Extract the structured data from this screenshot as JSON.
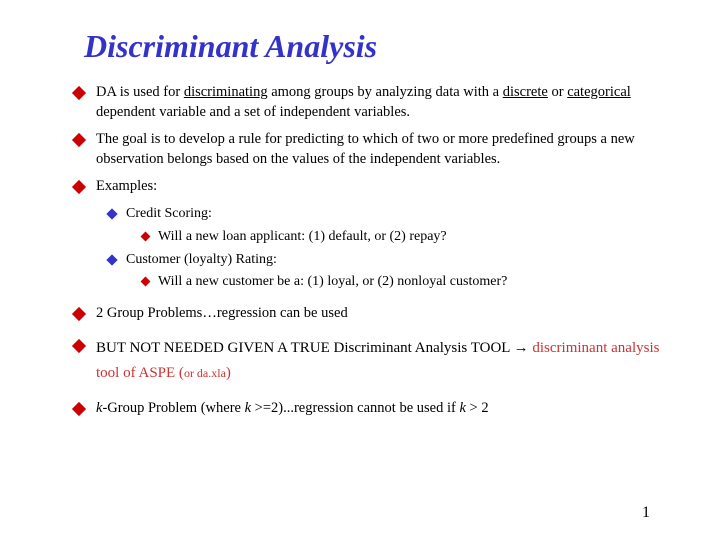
{
  "colors": {
    "title": "#3333cc",
    "bullet_red": "#cc0000",
    "bullet_blue": "#3333cc",
    "text_black": "#000000",
    "highlight_red": "#cc3333"
  },
  "title": "Discriminant Analysis",
  "page_number": "1",
  "bullets": [
    {
      "level": 1,
      "segments": [
        {
          "t": "DA is used for "
        },
        {
          "t": "discriminating",
          "u": true,
          "comic": true
        },
        {
          "t": " among groups by analyzing data with a "
        },
        {
          "t": "discrete",
          "u": true,
          "comic": true
        },
        {
          "t": " or "
        },
        {
          "t": "categorical",
          "u": true,
          "comic": true
        },
        {
          "t": " dependent variable and a set of independent variables."
        }
      ]
    },
    {
      "level": 1,
      "segments": [
        {
          "t": "The goal is to develop a rule for predicting to which of two or more predefined groups a new observation belongs based on the values of the independent variables."
        }
      ]
    },
    {
      "level": 1,
      "segments": [
        {
          "t": "Examples:"
        }
      ]
    },
    {
      "level": 2,
      "segments": [
        {
          "t": "Credit Scoring:"
        }
      ]
    },
    {
      "level": 3,
      "segments": [
        {
          "t": "Will a new loan applicant: (1) default, or (2) repay?"
        }
      ]
    },
    {
      "level": 2,
      "segments": [
        {
          "t": "Customer (loyalty) Rating:"
        }
      ]
    },
    {
      "level": 3,
      "segments": [
        {
          "t": "Will a new customer be a: (1) loyal, or (2) nonloyal customer?"
        }
      ]
    },
    {
      "level": 1,
      "spaced": true,
      "segments": [
        {
          "t": "2 Group Problems…"
        },
        {
          "t": "regression can be used",
          "comic": true
        }
      ]
    },
    {
      "level": 1,
      "spaced": true,
      "comic_all": true,
      "segments": [
        {
          "t": "BUT NOT NEEDED GIVEN A TRUE D",
          "comic": true
        },
        {
          "t": "iscriminant Analysis TOOL ",
          "comic": true
        },
        {
          "t": "→ ",
          "comic": true
        },
        {
          "t": "discriminant analysis tool of ASPE (",
          "comic": true,
          "color": "#cc3333"
        },
        {
          "t": "or da.xla",
          "comic": true,
          "color": "#cc3333",
          "small": true
        },
        {
          "t": ")",
          "comic": true,
          "color": "#cc3333"
        }
      ]
    },
    {
      "level": 1,
      "spaced": true,
      "segments": [
        {
          "t": "k",
          "italic": true
        },
        {
          "t": "-Group Problem (where "
        },
        {
          "t": "k",
          "italic": true
        },
        {
          "t": " >=2)..."
        },
        {
          "t": "regression cannot be used if ",
          "comic": true
        },
        {
          "t": "k",
          "comic": true,
          "italic": true
        },
        {
          "t": " > 2",
          "comic": true
        }
      ]
    }
  ]
}
